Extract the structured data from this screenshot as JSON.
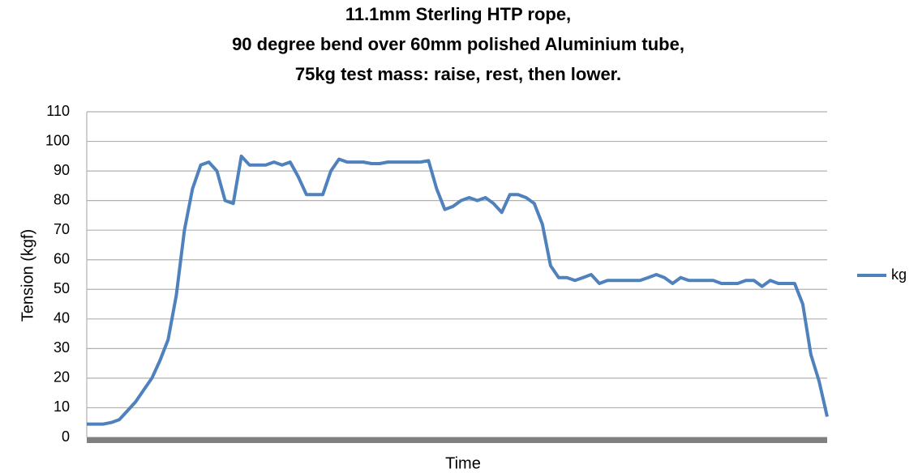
{
  "chart_data": {
    "type": "line",
    "title": [
      "11.1mm Sterling HTP rope,",
      "90 degree bend over 60mm polished Aluminium tube,",
      "75kg test mass: raise, rest, then lower."
    ],
    "x_label": "Time",
    "y_label": "Tension (kgf)",
    "categories": [
      null,
      null,
      null,
      null,
      null,
      null,
      null,
      null,
      null,
      null,
      null,
      null,
      null,
      null,
      null,
      null,
      null,
      null,
      null,
      null,
      null,
      null,
      null,
      null,
      null,
      null,
      null,
      null,
      null,
      null,
      null,
      null,
      null,
      null,
      null,
      null,
      null,
      null,
      null,
      null,
      null,
      null,
      null,
      null,
      null,
      null,
      null,
      null,
      null,
      null,
      null,
      null,
      null,
      null,
      null,
      null,
      null,
      null,
      null,
      null,
      null,
      null,
      null,
      null,
      null,
      null,
      null,
      null,
      null,
      null,
      null,
      null,
      null,
      null,
      null,
      null,
      null,
      null,
      null,
      null,
      null,
      null,
      null,
      null,
      null,
      null,
      null,
      null,
      null,
      null,
      null,
      null
    ],
    "series": [
      {
        "name": "kg",
        "color": "#4f81bd",
        "values": [
          4.5,
          4.5,
          4.5,
          5,
          6,
          9,
          12,
          16,
          20,
          26,
          33,
          48,
          70,
          84,
          92,
          93,
          90,
          80,
          79,
          95,
          92,
          92,
          92,
          93,
          92,
          93,
          88,
          82,
          82,
          82,
          90,
          94,
          93,
          93,
          93,
          92.5,
          92.5,
          93,
          93,
          93,
          93,
          93,
          93.5,
          84,
          77,
          78,
          80,
          81,
          80,
          81,
          79,
          76,
          82,
          82,
          81,
          79,
          72,
          58,
          54,
          54,
          53,
          54,
          55,
          52,
          53,
          53,
          53,
          53,
          53,
          54,
          55,
          54,
          52,
          54,
          53,
          53,
          53,
          53,
          52,
          52,
          52,
          53,
          53,
          51,
          53,
          52,
          52,
          52,
          45,
          28,
          19,
          7
        ]
      }
    ],
    "ylim": [
      0,
      110
    ],
    "yticks": [
      0,
      10,
      20,
      30,
      40,
      50,
      60,
      70,
      80,
      90,
      100,
      110
    ],
    "grid": true,
    "legend": "right"
  }
}
